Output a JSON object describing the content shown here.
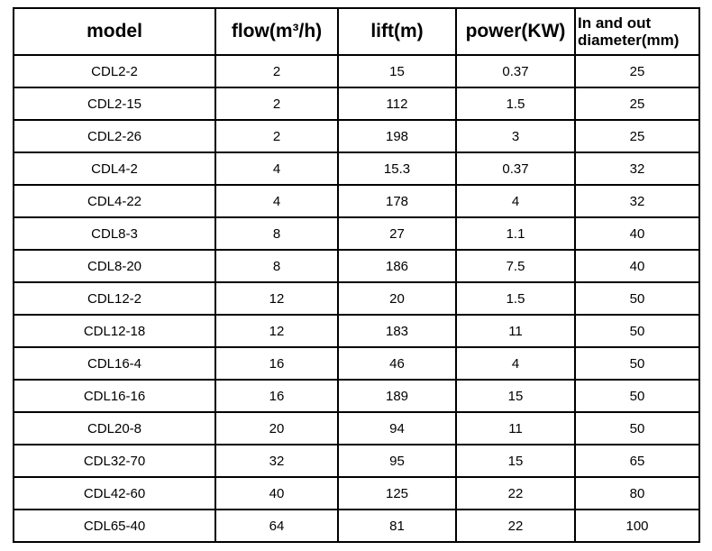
{
  "table": {
    "title": "pump-specifications",
    "columns": [
      {
        "label": "model"
      },
      {
        "label": "flow(m³/h)"
      },
      {
        "label": "lift(m)"
      },
      {
        "label": "power(KW)"
      },
      {
        "label": "In and out diameter(mm)"
      }
    ],
    "rows": [
      [
        "CDL2-2",
        "2",
        "15",
        "0.37",
        "25"
      ],
      [
        "CDL2-15",
        "2",
        "112",
        "1.5",
        "25"
      ],
      [
        "CDL2-26",
        "2",
        "198",
        "3",
        "25"
      ],
      [
        "CDL4-2",
        "4",
        "15.3",
        "0.37",
        "32"
      ],
      [
        "CDL4-22",
        "4",
        "178",
        "4",
        "32"
      ],
      [
        "CDL8-3",
        "8",
        "27",
        "1.1",
        "40"
      ],
      [
        "CDL8-20",
        "8",
        "186",
        "7.5",
        "40"
      ],
      [
        "CDL12-2",
        "12",
        "20",
        "1.5",
        "50"
      ],
      [
        "CDL12-18",
        "12",
        "183",
        "11",
        "50"
      ],
      [
        "CDL16-4",
        "16",
        "46",
        "4",
        "50"
      ],
      [
        "CDL16-16",
        "16",
        "189",
        "15",
        "50"
      ],
      [
        "CDL20-8",
        "20",
        "94",
        "11",
        "50"
      ],
      [
        "CDL32-70",
        "32",
        "95",
        "15",
        "65"
      ],
      [
        "CDL42-60",
        "40",
        "125",
        "22",
        "80"
      ],
      [
        "CDL65-40",
        "64",
        "81",
        "22",
        "100"
      ]
    ]
  }
}
